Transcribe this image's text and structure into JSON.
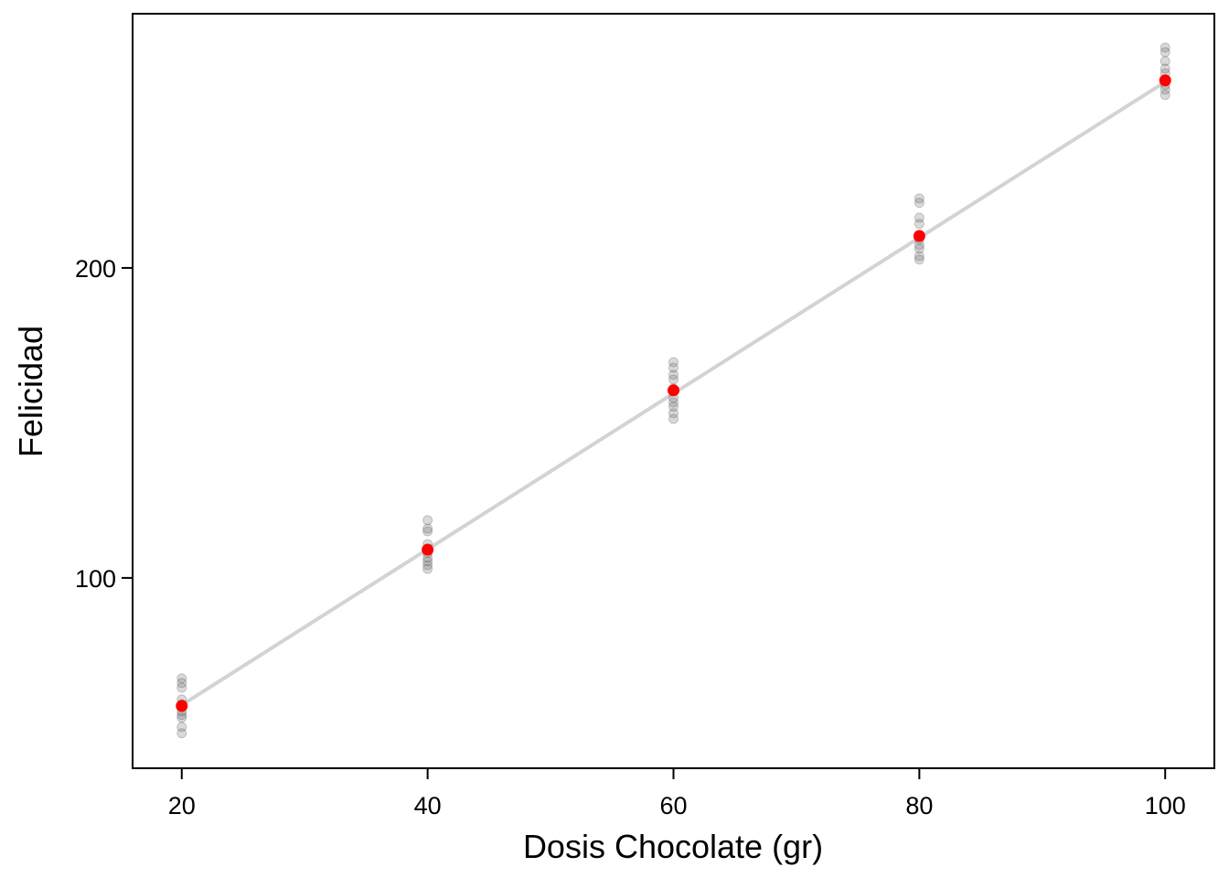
{
  "chart_data": {
    "type": "scatter",
    "xlabel": "Dosis Chocolate (gr)",
    "ylabel": "Felicidad",
    "xlim": [
      16,
      104
    ],
    "xticks": [
      20,
      40,
      60,
      80,
      100
    ],
    "ylim": [
      38.6,
      282
    ],
    "yticks": [
      100,
      200
    ],
    "points": {
      "color": "#555555",
      "x": [
        20,
        20,
        20,
        20,
        20,
        20,
        20,
        20,
        20,
        20,
        40,
        40,
        40,
        40,
        40,
        40,
        40,
        40,
        40,
        40,
        60,
        60,
        60,
        60,
        60,
        60,
        60,
        60,
        60,
        60,
        80,
        80,
        80,
        80,
        80,
        80,
        80,
        80,
        80,
        100,
        100,
        100,
        100,
        100,
        100,
        100,
        100,
        100
      ],
      "y": [
        67.6,
        66.1,
        64.6,
        60.8,
        59.3,
        56.9,
        55.8,
        54.9,
        51.9,
        49.9,
        118.6,
        115.9,
        115.0,
        110.9,
        109.4,
        108.0,
        106.5,
        105.3,
        104.1,
        102.9,
        169.6,
        167.8,
        165.5,
        164.0,
        161.1,
        158.1,
        156.6,
        155.2,
        153.1,
        151.3,
        222.4,
        221.0,
        216.2,
        214.2,
        209.2,
        207.4,
        206.2,
        203.8,
        202.7,
        271.1,
        269.6,
        266.7,
        264.3,
        262.8,
        260.5,
        259.0,
        257.5,
        255.8
      ]
    },
    "means": {
      "color": "#ff0000",
      "x": [
        20,
        40,
        60,
        80,
        100
      ],
      "y": [
        58.7,
        109.1,
        160.5,
        210.3,
        260.5
      ]
    },
    "fit": {
      "color": "#d3d3d3",
      "x": [
        20,
        100
      ],
      "y": [
        59,
        260
      ]
    }
  }
}
